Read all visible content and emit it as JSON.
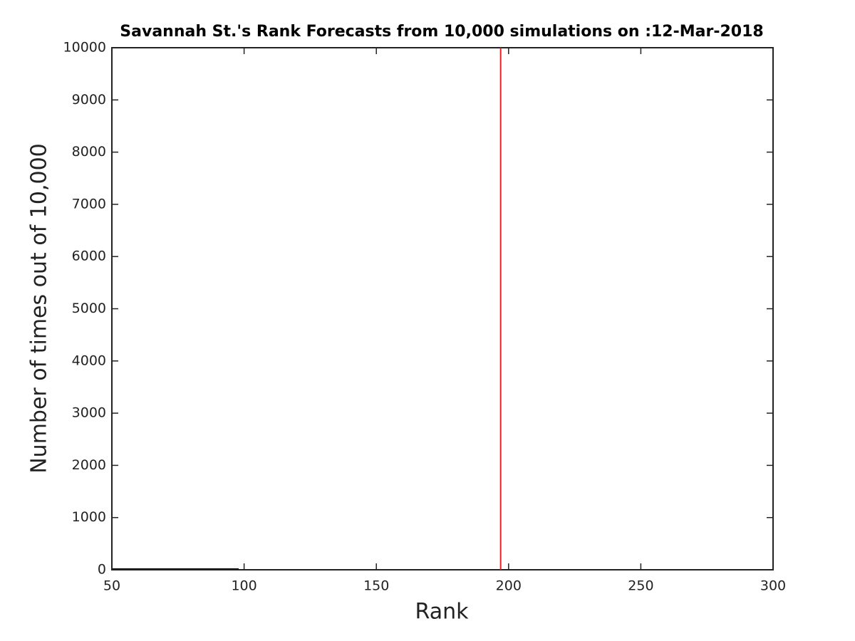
{
  "chart_data": {
    "type": "bar",
    "title": "Savannah St.'s Rank Forecasts from 10,000 simulations on :12-Mar-2018",
    "x_label": "Rank",
    "y_label": "Number of times out of 10,000",
    "x": [
      197
    ],
    "values": [
      10000
    ],
    "color": "#e8202a",
    "xlim": [
      50,
      300
    ],
    "xticks": [
      50,
      100,
      150,
      200,
      250,
      300
    ],
    "ylim": [
      0,
      10000
    ],
    "yticks": [
      0,
      1000,
      2000,
      3000,
      4000,
      5000,
      6000,
      7000,
      8000,
      9000,
      10000
    ],
    "grid": false
  }
}
